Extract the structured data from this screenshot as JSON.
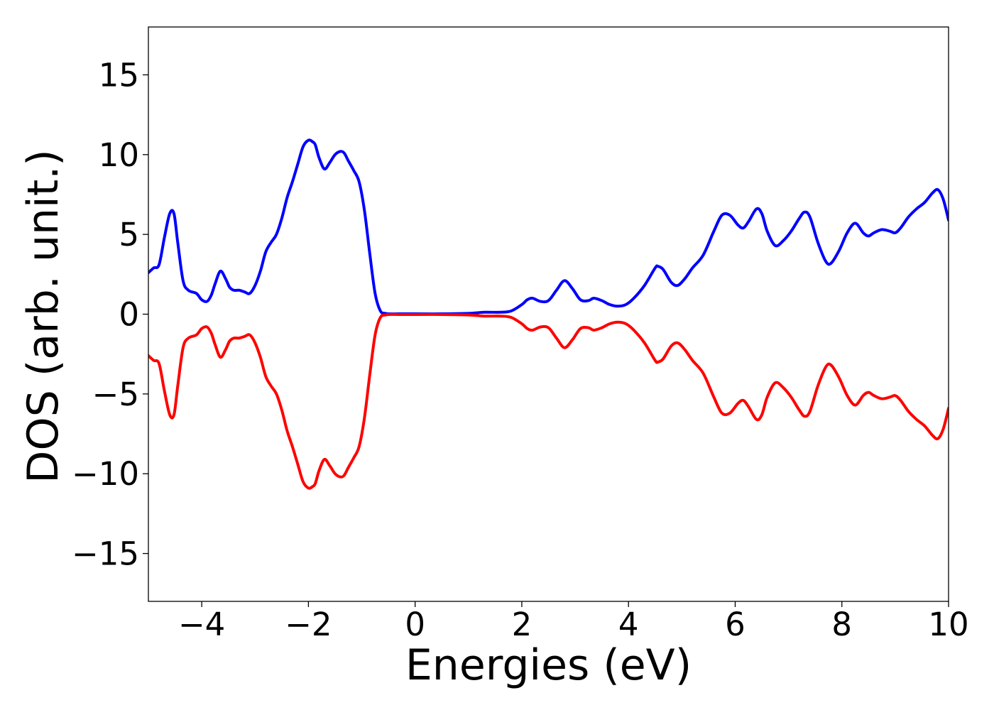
{
  "chart_data": {
    "type": "line",
    "title": "",
    "xlabel": "Energies (eV)",
    "ylabel": "DOS (arb. unit.)",
    "xlim": [
      -5,
      10
    ],
    "ylim": [
      -18,
      18
    ],
    "xticks": [
      -4,
      -2,
      0,
      2,
      4,
      6,
      8,
      10
    ],
    "xtick_labels": [
      "−4",
      "−2",
      "0",
      "2",
      "4",
      "6",
      "8",
      "10"
    ],
    "yticks": [
      15,
      10,
      5,
      0,
      -5,
      -10,
      -15
    ],
    "ytick_labels": [
      "15",
      "10",
      "5",
      "0",
      "−5",
      "−10",
      "−15"
    ],
    "grid": false,
    "legend": "none",
    "series": [
      {
        "color": "#0000ff",
        "x": [
          -5.0,
          -4.9,
          -4.8,
          -4.7,
          -4.6,
          -4.52,
          -4.45,
          -4.35,
          -4.25,
          -4.1,
          -4.0,
          -3.9,
          -3.82,
          -3.75,
          -3.65,
          -3.55,
          -3.48,
          -3.4,
          -3.3,
          -3.2,
          -3.1,
          -3.0,
          -2.9,
          -2.8,
          -2.7,
          -2.6,
          -2.5,
          -2.4,
          -2.3,
          -2.2,
          -2.1,
          -2.0,
          -1.92,
          -1.87,
          -1.8,
          -1.7,
          -1.6,
          -1.5,
          -1.4,
          -1.33,
          -1.25,
          -1.15,
          -1.05,
          -0.95,
          -0.85,
          -0.75,
          -0.65,
          -0.55,
          -0.5,
          -0.3,
          0.0,
          0.5,
          1.0,
          1.3,
          1.6,
          1.8,
          2.0,
          2.1,
          2.2,
          2.35,
          2.5,
          2.65,
          2.8,
          2.95,
          3.1,
          3.25,
          3.35,
          3.5,
          3.65,
          3.8,
          3.95,
          4.1,
          4.3,
          4.5,
          4.55,
          4.65,
          4.8,
          4.92,
          5.05,
          5.2,
          5.4,
          5.6,
          5.75,
          5.9,
          6.05,
          6.15,
          6.25,
          6.4,
          6.5,
          6.6,
          6.75,
          6.9,
          7.05,
          7.2,
          7.3,
          7.4,
          7.55,
          7.7,
          7.8,
          7.95,
          8.1,
          8.25,
          8.4,
          8.5,
          8.6,
          8.75,
          8.9,
          9.0,
          9.1,
          9.25,
          9.4,
          9.55,
          9.7,
          9.8,
          9.9,
          10.0
        ],
        "y": [
          2.6,
          2.9,
          3.1,
          4.8,
          6.3,
          6.3,
          4.5,
          2.1,
          1.5,
          1.3,
          0.9,
          0.8,
          1.2,
          1.9,
          2.7,
          2.2,
          1.7,
          1.5,
          1.5,
          1.4,
          1.3,
          1.8,
          2.7,
          3.9,
          4.5,
          5.0,
          6.0,
          7.3,
          8.3,
          9.4,
          10.5,
          10.9,
          10.8,
          10.6,
          9.8,
          9.1,
          9.5,
          10.0,
          10.2,
          10.1,
          9.6,
          9.0,
          8.3,
          6.5,
          3.8,
          1.3,
          0.2,
          0.05,
          0.02,
          0.02,
          0.02,
          0.02,
          0.05,
          0.12,
          0.12,
          0.2,
          0.6,
          0.9,
          1.0,
          0.8,
          0.85,
          1.5,
          2.1,
          1.6,
          0.9,
          0.85,
          1.0,
          0.85,
          0.6,
          0.5,
          0.6,
          1.0,
          1.8,
          2.9,
          3.0,
          2.8,
          2.0,
          1.8,
          2.2,
          2.9,
          3.7,
          5.2,
          6.2,
          6.2,
          5.6,
          5.4,
          5.8,
          6.6,
          6.3,
          5.2,
          4.3,
          4.6,
          5.2,
          6.0,
          6.4,
          6.1,
          4.5,
          3.3,
          3.2,
          4.0,
          5.1,
          5.7,
          5.1,
          4.9,
          5.1,
          5.3,
          5.2,
          5.1,
          5.4,
          6.1,
          6.6,
          7.0,
          7.6,
          7.8,
          7.2,
          5.9
        ]
      },
      {
        "color": "#ff0000",
        "x": [
          -5.0,
          -4.9,
          -4.8,
          -4.7,
          -4.6,
          -4.52,
          -4.45,
          -4.35,
          -4.25,
          -4.1,
          -4.0,
          -3.9,
          -3.82,
          -3.75,
          -3.65,
          -3.55,
          -3.48,
          -3.4,
          -3.3,
          -3.2,
          -3.1,
          -3.0,
          -2.9,
          -2.8,
          -2.7,
          -2.6,
          -2.5,
          -2.4,
          -2.3,
          -2.2,
          -2.1,
          -2.0,
          -1.92,
          -1.87,
          -1.8,
          -1.7,
          -1.6,
          -1.5,
          -1.4,
          -1.33,
          -1.25,
          -1.15,
          -1.05,
          -0.95,
          -0.85,
          -0.75,
          -0.65,
          -0.55,
          -0.5,
          -0.3,
          0.0,
          0.5,
          1.0,
          1.3,
          1.6,
          1.8,
          2.0,
          2.1,
          2.2,
          2.35,
          2.5,
          2.65,
          2.8,
          2.95,
          3.1,
          3.25,
          3.35,
          3.5,
          3.65,
          3.8,
          3.95,
          4.1,
          4.3,
          4.5,
          4.55,
          4.65,
          4.8,
          4.92,
          5.05,
          5.2,
          5.4,
          5.6,
          5.75,
          5.9,
          6.05,
          6.15,
          6.25,
          6.4,
          6.5,
          6.6,
          6.75,
          6.9,
          7.05,
          7.2,
          7.3,
          7.4,
          7.55,
          7.7,
          7.8,
          7.95,
          8.1,
          8.25,
          8.4,
          8.5,
          8.6,
          8.75,
          8.9,
          9.0,
          9.1,
          9.25,
          9.4,
          9.55,
          9.7,
          9.8,
          9.9,
          10.0
        ],
        "y": [
          -2.6,
          -2.9,
          -3.1,
          -4.8,
          -6.3,
          -6.3,
          -4.5,
          -2.1,
          -1.5,
          -1.3,
          -0.9,
          -0.8,
          -1.2,
          -1.9,
          -2.7,
          -2.2,
          -1.7,
          -1.5,
          -1.5,
          -1.4,
          -1.3,
          -1.8,
          -2.7,
          -3.9,
          -4.5,
          -5.0,
          -6.0,
          -7.3,
          -8.3,
          -9.4,
          -10.5,
          -10.9,
          -10.8,
          -10.6,
          -9.8,
          -9.1,
          -9.5,
          -10.0,
          -10.2,
          -10.1,
          -9.6,
          -9.0,
          -8.3,
          -6.5,
          -3.8,
          -1.3,
          -0.2,
          -0.05,
          -0.02,
          -0.02,
          -0.02,
          -0.02,
          -0.05,
          -0.12,
          -0.12,
          -0.2,
          -0.6,
          -0.9,
          -1.0,
          -0.8,
          -0.85,
          -1.5,
          -2.1,
          -1.6,
          -0.9,
          -0.85,
          -1.0,
          -0.85,
          -0.6,
          -0.5,
          -0.6,
          -1.0,
          -1.8,
          -2.9,
          -3.0,
          -2.8,
          -2.0,
          -1.8,
          -2.2,
          -2.9,
          -3.7,
          -5.2,
          -6.2,
          -6.2,
          -5.6,
          -5.4,
          -5.8,
          -6.6,
          -6.3,
          -5.2,
          -4.3,
          -4.6,
          -5.2,
          -6.0,
          -6.4,
          -6.1,
          -4.5,
          -3.3,
          -3.2,
          -4.0,
          -5.1,
          -5.7,
          -5.1,
          -4.9,
          -5.1,
          -5.3,
          -5.2,
          -5.1,
          -5.4,
          -6.1,
          -6.6,
          -7.0,
          -7.6,
          -7.8,
          -7.2,
          -5.9
        ]
      }
    ]
  }
}
